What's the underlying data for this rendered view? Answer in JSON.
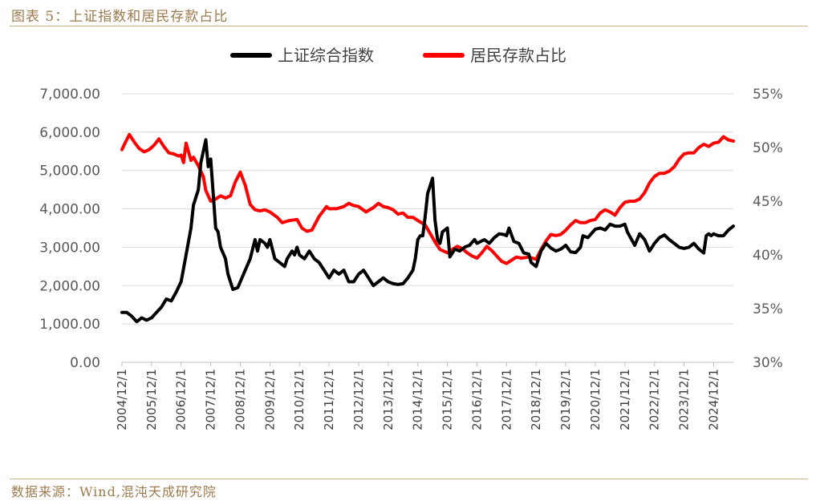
{
  "figure_title": "图表 5：上证指数和居民存款占比",
  "source_note": "数据来源：Wind,混沌天成研究院",
  "colors": {
    "index": "#000000",
    "deposit": "#ff0000",
    "grid": "#d9d9d9",
    "accent": "#9c7a4c"
  },
  "chart_data": {
    "type": "line",
    "title": "",
    "xlabel": "",
    "ylabel": "",
    "legend_position": "top-center",
    "grid": true,
    "x_ticks": [
      "2004/12/1",
      "2005/12/1",
      "2006/12/1",
      "2007/12/1",
      "2008/12/1",
      "2009/12/1",
      "2010/12/1",
      "2011/12/1",
      "2012/12/1",
      "2013/12/1",
      "2014/12/1",
      "2015/12/1",
      "2016/12/1",
      "2017/12/1",
      "2018/12/1",
      "2019/12/1",
      "2020/12/1",
      "2021/12/1",
      "2022/12/1",
      "2023/12/1",
      "2024/12/1"
    ],
    "y_left": {
      "ticks": [
        "0.00",
        "1,000.00",
        "2,000.00",
        "3,000.00",
        "4,000.00",
        "5,000.00",
        "6,000.00",
        "7,000.00"
      ],
      "ylim": [
        0,
        7000
      ]
    },
    "y_right": {
      "ticks": [
        "30%",
        "35%",
        "40%",
        "45%",
        "50%",
        "55%"
      ],
      "ylim": [
        30,
        55
      ]
    },
    "series": [
      {
        "name": "上证综合指数",
        "axis": "left",
        "points": [
          [
            "2004-12",
            1300
          ],
          [
            "2005-02",
            1300
          ],
          [
            "2005-04",
            1200
          ],
          [
            "2005-06",
            1060
          ],
          [
            "2005-08",
            1160
          ],
          [
            "2005-10",
            1100
          ],
          [
            "2005-12",
            1160
          ],
          [
            "2006-02",
            1300
          ],
          [
            "2006-04",
            1440
          ],
          [
            "2006-06",
            1650
          ],
          [
            "2006-08",
            1600
          ],
          [
            "2006-10",
            1830
          ],
          [
            "2006-12",
            2100
          ],
          [
            "2007-02",
            2800
          ],
          [
            "2007-04",
            3500
          ],
          [
            "2007-05",
            4100
          ],
          [
            "2007-07",
            4500
          ],
          [
            "2007-08",
            5200
          ],
          [
            "2007-10",
            5800
          ],
          [
            "2007-11",
            5100
          ],
          [
            "2007-12",
            5300
          ],
          [
            "2008-01",
            4400
          ],
          [
            "2008-02",
            3500
          ],
          [
            "2008-03",
            3400
          ],
          [
            "2008-04",
            3000
          ],
          [
            "2008-06",
            2700
          ],
          [
            "2008-07",
            2300
          ],
          [
            "2008-09",
            1900
          ],
          [
            "2008-11",
            1950
          ],
          [
            "2008-12",
            2100
          ],
          [
            "2009-02",
            2400
          ],
          [
            "2009-04",
            2700
          ],
          [
            "2009-06",
            3200
          ],
          [
            "2009-07",
            2900
          ],
          [
            "2009-08",
            3200
          ],
          [
            "2009-10",
            3100
          ],
          [
            "2009-11",
            3000
          ],
          [
            "2009-12",
            3200
          ],
          [
            "2010-02",
            2700
          ],
          [
            "2010-04",
            2600
          ],
          [
            "2010-06",
            2500
          ],
          [
            "2010-07",
            2700
          ],
          [
            "2010-09",
            2900
          ],
          [
            "2010-10",
            2800
          ],
          [
            "2010-11",
            3000
          ],
          [
            "2010-12",
            2800
          ],
          [
            "2011-02",
            2700
          ],
          [
            "2011-04",
            2900
          ],
          [
            "2011-06",
            2700
          ],
          [
            "2011-08",
            2600
          ],
          [
            "2011-10",
            2400
          ],
          [
            "2011-12",
            2200
          ],
          [
            "2012-02",
            2400
          ],
          [
            "2012-04",
            2300
          ],
          [
            "2012-06",
            2400
          ],
          [
            "2012-08",
            2100
          ],
          [
            "2012-10",
            2100
          ],
          [
            "2012-12",
            2300
          ],
          [
            "2013-02",
            2400
          ],
          [
            "2013-04",
            2200
          ],
          [
            "2013-06",
            2000
          ],
          [
            "2013-08",
            2100
          ],
          [
            "2013-10",
            2200
          ],
          [
            "2013-12",
            2100
          ],
          [
            "2014-02",
            2050
          ],
          [
            "2014-04",
            2030
          ],
          [
            "2014-06",
            2050
          ],
          [
            "2014-08",
            2200
          ],
          [
            "2014-10",
            2400
          ],
          [
            "2014-11",
            2700
          ],
          [
            "2014-12",
            3200
          ],
          [
            "2015-01",
            3300
          ],
          [
            "2015-02",
            3300
          ],
          [
            "2015-03",
            3800
          ],
          [
            "2015-04",
            4400
          ],
          [
            "2015-05",
            4600
          ],
          [
            "2015-06",
            4800
          ],
          [
            "2015-07",
            3700
          ],
          [
            "2015-08",
            3200
          ],
          [
            "2015-09",
            3100
          ],
          [
            "2015-10",
            3400
          ],
          [
            "2015-11",
            3450
          ],
          [
            "2015-12",
            3500
          ],
          [
            "2016-01",
            2750
          ],
          [
            "2016-03",
            2950
          ],
          [
            "2016-05",
            2900
          ],
          [
            "2016-07",
            3000
          ],
          [
            "2016-09",
            3050
          ],
          [
            "2016-11",
            3200
          ],
          [
            "2016-12",
            3100
          ],
          [
            "2017-03",
            3200
          ],
          [
            "2017-05",
            3100
          ],
          [
            "2017-07",
            3250
          ],
          [
            "2017-09",
            3350
          ],
          [
            "2017-11",
            3330
          ],
          [
            "2017-12",
            3300
          ],
          [
            "2018-01",
            3500
          ],
          [
            "2018-03",
            3150
          ],
          [
            "2018-05",
            3100
          ],
          [
            "2018-07",
            2850
          ],
          [
            "2018-09",
            2820
          ],
          [
            "2018-10",
            2600
          ],
          [
            "2018-12",
            2500
          ],
          [
            "2019-02",
            2900
          ],
          [
            "2019-04",
            3100
          ],
          [
            "2019-06",
            2980
          ],
          [
            "2019-08",
            2900
          ],
          [
            "2019-10",
            2950
          ],
          [
            "2019-12",
            3050
          ],
          [
            "2020-02",
            2880
          ],
          [
            "2020-04",
            2860
          ],
          [
            "2020-06",
            3000
          ],
          [
            "2020-07",
            3300
          ],
          [
            "2020-09",
            3250
          ],
          [
            "2020-11",
            3400
          ],
          [
            "2020-12",
            3470
          ],
          [
            "2021-02",
            3500
          ],
          [
            "2021-04",
            3450
          ],
          [
            "2021-06",
            3600
          ],
          [
            "2021-08",
            3550
          ],
          [
            "2021-10",
            3550
          ],
          [
            "2021-12",
            3600
          ],
          [
            "2022-01",
            3400
          ],
          [
            "2022-04",
            3050
          ],
          [
            "2022-06",
            3350
          ],
          [
            "2022-08",
            3200
          ],
          [
            "2022-10",
            2900
          ],
          [
            "2022-12",
            3100
          ],
          [
            "2023-02",
            3250
          ],
          [
            "2023-04",
            3320
          ],
          [
            "2023-06",
            3200
          ],
          [
            "2023-08",
            3100
          ],
          [
            "2023-10",
            3000
          ],
          [
            "2023-12",
            2970
          ],
          [
            "2024-02",
            3000
          ],
          [
            "2024-04",
            3100
          ],
          [
            "2024-06",
            2950
          ],
          [
            "2024-08",
            2850
          ],
          [
            "2024-09",
            3300
          ],
          [
            "2024-10",
            3350
          ],
          [
            "2024-11",
            3300
          ],
          [
            "2024-12",
            3350
          ],
          [
            "2025-02",
            3300
          ],
          [
            "2025-04",
            3300
          ],
          [
            "2025-06",
            3450
          ],
          [
            "2025-08",
            3550
          ]
        ]
      },
      {
        "name": "居民存款占比",
        "axis": "right",
        "points": [
          [
            "2004-12",
            49.8
          ],
          [
            "2005-01",
            50.3
          ],
          [
            "2005-03",
            51.2
          ],
          [
            "2005-05",
            50.5
          ],
          [
            "2005-07",
            49.9
          ],
          [
            "2005-09",
            49.6
          ],
          [
            "2005-11",
            49.8
          ],
          [
            "2006-01",
            50.2
          ],
          [
            "2006-03",
            50.8
          ],
          [
            "2006-05",
            50.1
          ],
          [
            "2006-07",
            49.5
          ],
          [
            "2006-09",
            49.4
          ],
          [
            "2006-11",
            49.2
          ],
          [
            "2006-12",
            49.3
          ],
          [
            "2007-01",
            48.6
          ],
          [
            "2007-02",
            50.4
          ],
          [
            "2007-04",
            48.8
          ],
          [
            "2007-05",
            49.1
          ],
          [
            "2007-07",
            48.3
          ],
          [
            "2007-09",
            47.3
          ],
          [
            "2007-10",
            46.0
          ],
          [
            "2007-12",
            45.0
          ],
          [
            "2008-02",
            45.2
          ],
          [
            "2008-04",
            45.5
          ],
          [
            "2008-06",
            45.3
          ],
          [
            "2008-08",
            45.5
          ],
          [
            "2008-10",
            46.8
          ],
          [
            "2008-12",
            47.7
          ],
          [
            "2009-02",
            46.5
          ],
          [
            "2009-04",
            44.7
          ],
          [
            "2009-06",
            44.2
          ],
          [
            "2009-08",
            44.1
          ],
          [
            "2009-10",
            44.2
          ],
          [
            "2009-12",
            44.0
          ],
          [
            "2010-03",
            43.5
          ],
          [
            "2010-05",
            43.0
          ],
          [
            "2010-08",
            43.2
          ],
          [
            "2010-11",
            43.3
          ],
          [
            "2011-01",
            42.5
          ],
          [
            "2011-03",
            42.2
          ],
          [
            "2011-05",
            42.3
          ],
          [
            "2011-08",
            43.6
          ],
          [
            "2011-11",
            44.5
          ],
          [
            "2011-12",
            44.3
          ],
          [
            "2012-03",
            44.3
          ],
          [
            "2012-06",
            44.5
          ],
          [
            "2012-08",
            44.8
          ],
          [
            "2012-10",
            44.6
          ],
          [
            "2012-12",
            44.5
          ],
          [
            "2013-03",
            44.0
          ],
          [
            "2013-06",
            44.4
          ],
          [
            "2013-08",
            44.8
          ],
          [
            "2013-10",
            44.5
          ],
          [
            "2013-12",
            44.4
          ],
          [
            "2014-02",
            44.2
          ],
          [
            "2014-04",
            43.8
          ],
          [
            "2014-06",
            43.9
          ],
          [
            "2014-08",
            43.5
          ],
          [
            "2014-10",
            43.5
          ],
          [
            "2014-12",
            43.2
          ],
          [
            "2015-03",
            42.8
          ],
          [
            "2015-05",
            42.0
          ],
          [
            "2015-07",
            41.2
          ],
          [
            "2015-09",
            40.5
          ],
          [
            "2015-12",
            40.2
          ],
          [
            "2016-02",
            40.5
          ],
          [
            "2016-04",
            40.8
          ],
          [
            "2016-06",
            40.6
          ],
          [
            "2016-08",
            40.2
          ],
          [
            "2016-10",
            39.9
          ],
          [
            "2016-12",
            39.7
          ],
          [
            "2017-02",
            40.2
          ],
          [
            "2017-04",
            40.8
          ],
          [
            "2017-06",
            40.4
          ],
          [
            "2017-08",
            39.9
          ],
          [
            "2017-10",
            39.4
          ],
          [
            "2017-12",
            39.2
          ],
          [
            "2018-02",
            39.5
          ],
          [
            "2018-04",
            39.8
          ],
          [
            "2018-06",
            39.7
          ],
          [
            "2018-09",
            39.8
          ],
          [
            "2018-12",
            39.6
          ],
          [
            "2019-02",
            40.5
          ],
          [
            "2019-04",
            41.3
          ],
          [
            "2019-06",
            41.9
          ],
          [
            "2019-08",
            41.8
          ],
          [
            "2019-10",
            41.9
          ],
          [
            "2019-12",
            42.3
          ],
          [
            "2020-02",
            42.8
          ],
          [
            "2020-04",
            43.2
          ],
          [
            "2020-06",
            43.0
          ],
          [
            "2020-08",
            43.0
          ],
          [
            "2020-10",
            43.2
          ],
          [
            "2020-12",
            43.3
          ],
          [
            "2021-02",
            43.9
          ],
          [
            "2021-04",
            44.2
          ],
          [
            "2021-06",
            44.0
          ],
          [
            "2021-08",
            43.7
          ],
          [
            "2021-10",
            44.4
          ],
          [
            "2021-12",
            44.9
          ],
          [
            "2022-02",
            45.0
          ],
          [
            "2022-04",
            45.0
          ],
          [
            "2022-06",
            45.2
          ],
          [
            "2022-08",
            45.8
          ],
          [
            "2022-10",
            46.7
          ],
          [
            "2022-12",
            47.3
          ],
          [
            "2023-02",
            47.6
          ],
          [
            "2023-04",
            47.6
          ],
          [
            "2023-06",
            47.8
          ],
          [
            "2023-08",
            48.2
          ],
          [
            "2023-10",
            48.9
          ],
          [
            "2023-12",
            49.4
          ],
          [
            "2024-02",
            49.5
          ],
          [
            "2024-04",
            49.5
          ],
          [
            "2024-06",
            50.0
          ],
          [
            "2024-08",
            50.3
          ],
          [
            "2024-10",
            50.1
          ],
          [
            "2024-12",
            50.4
          ],
          [
            "2025-02",
            50.5
          ],
          [
            "2025-04",
            51.0
          ],
          [
            "2025-06",
            50.7
          ],
          [
            "2025-08",
            50.6
          ]
        ]
      }
    ]
  }
}
